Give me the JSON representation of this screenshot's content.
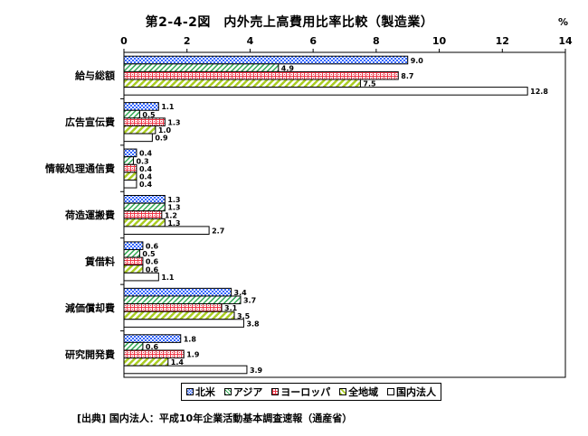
{
  "chart_data": {
    "type": "bar",
    "orientation": "horizontal",
    "title": "第2-4-2図　内外売上高費用比率比較（製造業）",
    "unit": "%",
    "xlim": [
      0,
      14
    ],
    "xticks": [
      "0",
      "2",
      "4",
      "6",
      "8",
      "10",
      "12",
      "14"
    ],
    "categories": [
      "給与総額",
      "広告宣伝費",
      "情報処理通信費",
      "荷造運搬費",
      "賃借料",
      "減価償却費",
      "研究開発費"
    ],
    "series": [
      {
        "name": "北米",
        "values": [
          9.0,
          1.1,
          0.4,
          1.3,
          0.6,
          3.4,
          1.8
        ],
        "labels": [
          "9.0",
          "1.1",
          "0.4",
          "1.3",
          "0.6",
          "3.4",
          "1.8"
        ],
        "color": "#3366ff",
        "pattern": "dots"
      },
      {
        "name": "アジア",
        "values": [
          4.9,
          0.5,
          0.3,
          1.3,
          0.5,
          3.7,
          0.6
        ],
        "labels": [
          "4.9",
          "0.5",
          "0.3",
          "1.3",
          "0.5",
          "3.7",
          "0.6"
        ],
        "color": "#33aa55",
        "pattern": "diag-thin"
      },
      {
        "name": "ヨーロッパ",
        "values": [
          8.7,
          1.3,
          0.4,
          1.2,
          0.6,
          3.1,
          1.9
        ],
        "labels": [
          "8.7",
          "1.3",
          "0.4",
          "1.2",
          "0.6",
          "3.1",
          "1.9"
        ],
        "color": "#ee3344",
        "pattern": "crosshatch"
      },
      {
        "name": "全地域",
        "values": [
          7.5,
          1.0,
          0.4,
          1.3,
          0.6,
          3.5,
          1.4
        ],
        "labels": [
          "7.5",
          "1.0",
          "0.4",
          "1.3",
          "0.6",
          "3.5",
          "1.4"
        ],
        "color": "#aacc22",
        "pattern": "diag-thick"
      },
      {
        "name": "国内法人",
        "values": [
          12.8,
          0.9,
          0.4,
          2.7,
          1.1,
          3.8,
          3.9
        ],
        "labels": [
          "12.8",
          "0.9",
          "0.4",
          "2.7",
          "1.1",
          "3.8",
          "3.9"
        ],
        "color": "#ffffff",
        "pattern": "none"
      }
    ],
    "legend_position": "bottom",
    "grid": false
  },
  "source": "[出典] 国内法人：平成10年企業活動基本調査速報（通産省）"
}
